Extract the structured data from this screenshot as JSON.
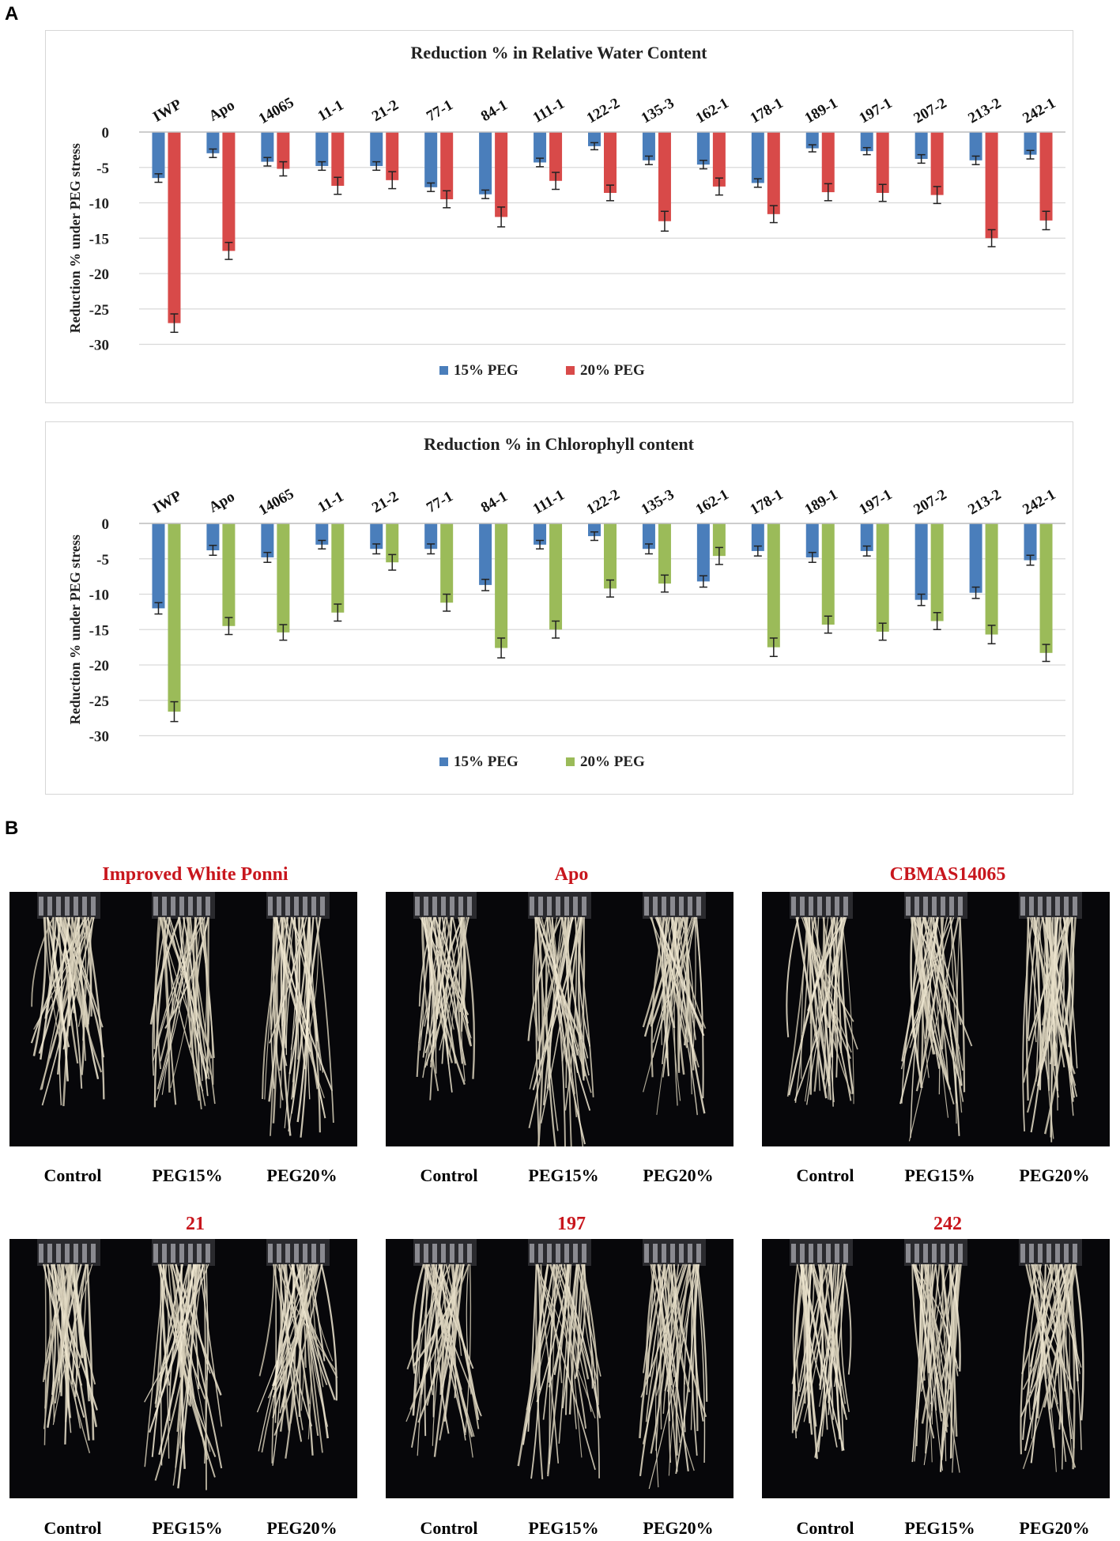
{
  "panel_labels": {
    "a": "A",
    "b": "B"
  },
  "colors": {
    "peg15": "#4a7ebb",
    "peg20_rwc": "#d84a49",
    "peg20_chl": "#9bbb59",
    "grid": "#d9d9d9",
    "title_red": "#c8161d"
  },
  "chart_data": [
    {
      "type": "bar",
      "title": "Reduction % in Relative Water Content",
      "ylabel": "Reduction % under PEG stress",
      "xlabel": "",
      "ylim": [
        -30,
        0
      ],
      "yticks": [
        0,
        -5,
        -10,
        -15,
        -20,
        -25,
        -30
      ],
      "categories": [
        "IWP",
        "Apo",
        "14065",
        "11-1",
        "21-2",
        "77-1",
        "84-1",
        "111-1",
        "122-2",
        "135-3",
        "162-1",
        "178-1",
        "189-1",
        "197-1",
        "207-2",
        "213-2",
        "242-1"
      ],
      "series": [
        {
          "name": "15% PEG",
          "values": [
            -6.5,
            -3.0,
            -4.2,
            -4.8,
            -4.8,
            -7.8,
            -8.8,
            -4.3,
            -2.0,
            -4.0,
            -4.6,
            -7.2,
            -2.3,
            -2.7,
            -3.8,
            -4.0,
            -3.2
          ],
          "errors": [
            0.6,
            0.6,
            0.6,
            0.6,
            0.6,
            0.6,
            0.6,
            0.6,
            0.5,
            0.6,
            0.6,
            0.6,
            0.5,
            0.5,
            0.6,
            0.6,
            0.6
          ]
        },
        {
          "name": "20% PEG",
          "values": [
            -27.0,
            -16.8,
            -5.2,
            -7.6,
            -6.8,
            -9.5,
            -12.0,
            -6.9,
            -8.6,
            -12.6,
            -7.7,
            -11.6,
            -8.5,
            -8.6,
            -8.9,
            -15.0,
            -12.5
          ],
          "errors": [
            1.3,
            1.2,
            1.0,
            1.2,
            1.2,
            1.2,
            1.4,
            1.2,
            1.1,
            1.4,
            1.2,
            1.2,
            1.2,
            1.2,
            1.2,
            1.2,
            1.3
          ]
        }
      ],
      "legend": "bottom-center",
      "grid": true
    },
    {
      "type": "bar",
      "title": "Reduction % in Chlorophyll content",
      "ylabel": "Reduction % under PEG stress",
      "xlabel": "",
      "ylim": [
        -30,
        0
      ],
      "yticks": [
        0,
        -5,
        -10,
        -15,
        -20,
        -25,
        -30
      ],
      "categories": [
        "IWP",
        "Apo",
        "14065",
        "11-1",
        "21-2",
        "77-1",
        "84-1",
        "111-1",
        "122-2",
        "135-3",
        "162-1",
        "178-1",
        "189-1",
        "197-1",
        "207-2",
        "213-2",
        "242-1"
      ],
      "series": [
        {
          "name": "15% PEG",
          "values": [
            -12.0,
            -3.8,
            -4.8,
            -3.0,
            -3.6,
            -3.6,
            -8.7,
            -3.0,
            -1.8,
            -3.6,
            -8.2,
            -3.9,
            -4.8,
            -3.9,
            -10.8,
            -9.8,
            -5.2
          ],
          "errors": [
            0.8,
            0.7,
            0.7,
            0.6,
            0.7,
            0.7,
            0.8,
            0.6,
            0.6,
            0.7,
            0.8,
            0.7,
            0.7,
            0.7,
            0.8,
            0.8,
            0.7
          ]
        },
        {
          "name": "20% PEG",
          "values": [
            -26.6,
            -14.5,
            -15.4,
            -12.6,
            -5.5,
            -11.2,
            -17.6,
            -15.0,
            -9.2,
            -8.5,
            -4.6,
            -17.5,
            -14.3,
            -15.3,
            -13.8,
            -15.7,
            -18.3
          ],
          "errors": [
            1.4,
            1.2,
            1.1,
            1.2,
            1.1,
            1.2,
            1.4,
            1.2,
            1.2,
            1.2,
            1.2,
            1.3,
            1.2,
            1.2,
            1.2,
            1.3,
            1.2
          ]
        }
      ],
      "legend": "bottom-center",
      "grid": true
    }
  ],
  "photos": [
    {
      "title": "Improved White Ponni",
      "captions": [
        "Control",
        "PEG15%",
        "PEG20%"
      ]
    },
    {
      "title": "Apo",
      "captions": [
        "Control",
        "PEG15%",
        "PEG20%"
      ]
    },
    {
      "title": "CBMAS14065",
      "captions": [
        "Control",
        "PEG15%",
        "PEG20%"
      ]
    },
    {
      "title": "21",
      "captions": [
        "Control",
        "PEG15%",
        "PEG20%"
      ]
    },
    {
      "title": "197",
      "captions": [
        "Control",
        "PEG15%",
        "PEG20%"
      ]
    },
    {
      "title": "242",
      "captions": [
        "Control",
        "PEG15%",
        "PEG20%"
      ]
    }
  ]
}
